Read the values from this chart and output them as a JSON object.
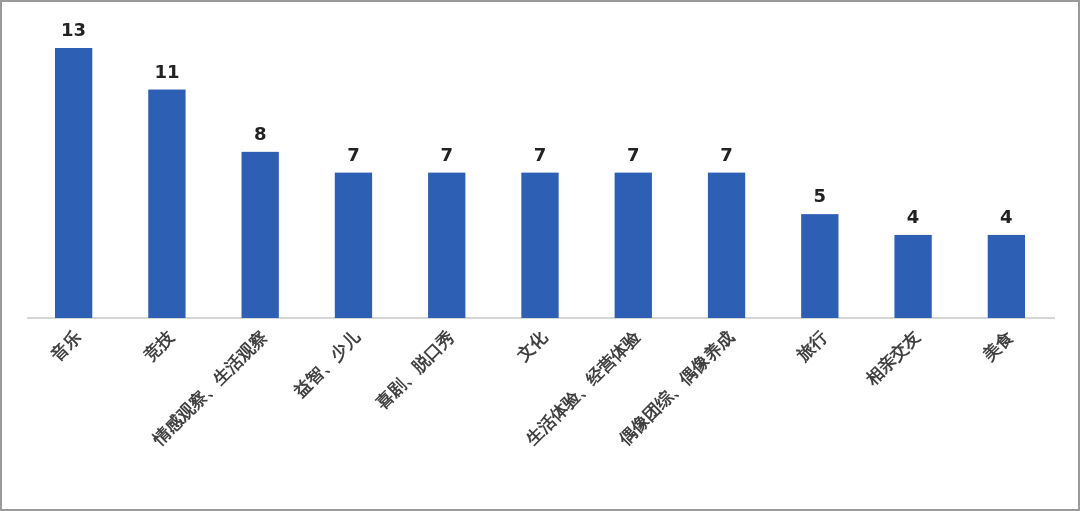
{
  "chart_data": {
    "type": "bar",
    "categories": [
      "音乐",
      "竞技",
      "情感观察、生活观察",
      "益智、少儿",
      "喜剧、脱口秀",
      "文化",
      "生活体验、经营体验",
      "偶像团综、偶像养成",
      "旅行",
      "相亲交友",
      "美食"
    ],
    "values": [
      13,
      11,
      8,
      7,
      7,
      7,
      7,
      7,
      5,
      4,
      4
    ],
    "color": "#2d5fb5",
    "data_labels": true
  }
}
